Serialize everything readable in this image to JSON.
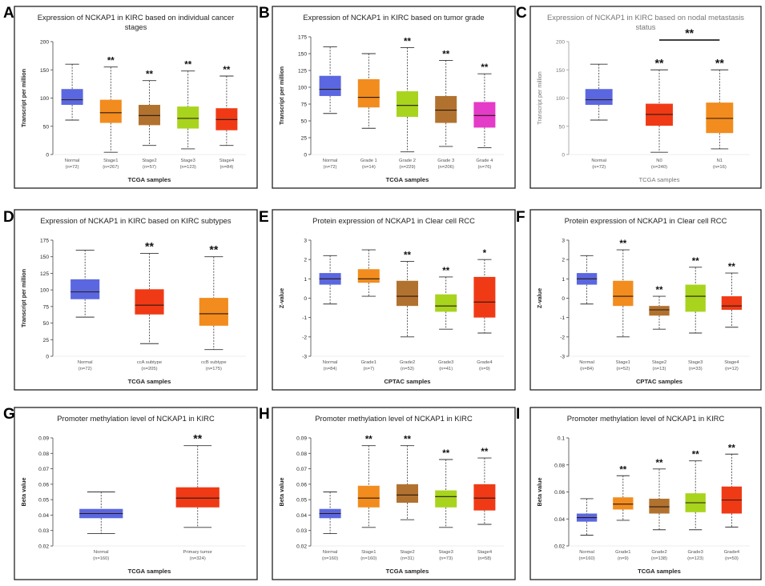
{
  "figure_caption": "",
  "colors": {
    "blue": "#5B67E0",
    "orange": "#F28C1E",
    "brown": "#B2722F",
    "lime": "#A8D41E",
    "magenta": "#E43BC8",
    "red": "#F03A16",
    "frame": "#222222"
  },
  "chart_data": [
    {
      "letter": "A",
      "type": "boxplot",
      "title": [
        "Expression of NCKAP1 in KIRC based on individual cancer",
        "stages"
      ],
      "xlabel": "TCGA samples",
      "ylabel": "Transcript per million",
      "ylim": [
        0,
        200
      ],
      "yticks": [
        0,
        50,
        100,
        150,
        200
      ],
      "categories": [
        "Normal",
        "Stage1",
        "Stage2",
        "Stage3",
        "Stage4"
      ],
      "n_labels": [
        "(n=72)",
        "(n=267)",
        "(n=57)",
        "(n=123)",
        "(n=84)"
      ],
      "colors": [
        "blue",
        "orange",
        "brown",
        "lime",
        "red"
      ],
      "boxes": [
        {
          "min": 61,
          "q1": 88,
          "median": 97,
          "q3": 116,
          "max": 160
        },
        {
          "min": 4,
          "q1": 56,
          "median": 74,
          "q3": 97,
          "max": 155
        },
        {
          "min": 16,
          "q1": 52,
          "median": 69,
          "q3": 88,
          "max": 131
        },
        {
          "min": 10,
          "q1": 46,
          "median": 64,
          "q3": 85,
          "max": 148
        },
        {
          "min": 16,
          "q1": 43,
          "median": 62,
          "q3": 82,
          "max": 139
        }
      ],
      "significance": [
        "",
        "**",
        "**",
        "**",
        "**"
      ]
    },
    {
      "letter": "B",
      "type": "boxplot",
      "title": [
        "Expression of NCKAP1 in KIRC based on tumor grade"
      ],
      "xlabel": "TCGA samples",
      "ylabel": "Transcript per million",
      "ylim": [
        0,
        175
      ],
      "yticks": [
        0,
        25,
        50,
        75,
        100,
        125,
        150,
        175
      ],
      "categories": [
        "Normal",
        "Grade 1",
        "Grade 2",
        "Grade 3",
        "Grade 4"
      ],
      "n_labels": [
        "(n=72)",
        "(n=14)",
        "(n=229)",
        "(n=206)",
        "(n=76)"
      ],
      "colors": [
        "blue",
        "orange",
        "lime",
        "brown",
        "magenta"
      ],
      "boxes": [
        {
          "min": 61,
          "q1": 87,
          "median": 97,
          "q3": 117,
          "max": 160
        },
        {
          "min": 39,
          "q1": 70,
          "median": 85,
          "q3": 112,
          "max": 150
        },
        {
          "min": 4,
          "q1": 56,
          "median": 73,
          "q3": 94,
          "max": 159
        },
        {
          "min": 12,
          "q1": 47,
          "median": 66,
          "q3": 87,
          "max": 140
        },
        {
          "min": 10,
          "q1": 40,
          "median": 58,
          "q3": 78,
          "max": 120
        }
      ],
      "significance": [
        "",
        "",
        "**",
        "**",
        "**"
      ]
    },
    {
      "letter": "C",
      "type": "boxplot",
      "title": [
        "Expression of NCKAP1 in KIRC based on nodal metastasis",
        "status"
      ],
      "xlabel": "TCGA samples",
      "ylabel": "Transcript per million",
      "ylim": [
        0,
        200
      ],
      "yticks": [
        0,
        50,
        100,
        150,
        200
      ],
      "categories": [
        "Normal",
        "N0",
        "N1"
      ],
      "n_labels": [
        "(n=72)",
        "(n=240)",
        "(n=16)"
      ],
      "colors": [
        "blue",
        "red",
        "orange"
      ],
      "boxes": [
        {
          "min": 61,
          "q1": 88,
          "median": 97,
          "q3": 116,
          "max": 160
        },
        {
          "min": 4,
          "q1": 51,
          "median": 71,
          "q3": 90,
          "max": 150
        },
        {
          "min": 10,
          "q1": 38,
          "median": 64,
          "q3": 92,
          "max": 150
        }
      ],
      "significance": [
        "",
        "**",
        "**"
      ],
      "bracket": {
        "from": 1,
        "to": 2,
        "label": "**"
      },
      "faint": true
    },
    {
      "letter": "D",
      "type": "boxplot",
      "title": [
        "Expression of NCKAP1 in KIRC based on KIRC subtypes"
      ],
      "xlabel": "TCGA samples",
      "ylabel": "Transcript per million",
      "ylim": [
        0,
        175
      ],
      "yticks": [
        0,
        25,
        50,
        75,
        100,
        125,
        150,
        175
      ],
      "categories": [
        "Normal",
        "ccA subtype",
        "ccB subtype"
      ],
      "n_labels": [
        "(n=72)",
        "(n=205)",
        "(n=175)"
      ],
      "colors": [
        "blue",
        "red",
        "orange"
      ],
      "boxes": [
        {
          "min": 59,
          "q1": 86,
          "median": 97,
          "q3": 116,
          "max": 160
        },
        {
          "min": 19,
          "q1": 63,
          "median": 77,
          "q3": 101,
          "max": 155
        },
        {
          "min": 10,
          "q1": 46,
          "median": 64,
          "q3": 88,
          "max": 150
        }
      ],
      "significance": [
        "",
        "**",
        "**"
      ]
    },
    {
      "letter": "E",
      "type": "boxplot",
      "title": [
        "Protein expression of NCKAP1 in Clear cell RCC"
      ],
      "xlabel": "CPTAC samples",
      "ylabel": "Z-value",
      "ylim": [
        -3,
        3
      ],
      "yticks": [
        -3,
        -2,
        -1,
        0,
        1,
        2,
        3
      ],
      "categories": [
        "Normal",
        "Grade1",
        "Grade2",
        "Grade3",
        "Grade4"
      ],
      "n_labels": [
        "(n=84)",
        "(n=7)",
        "(n=53)",
        "(n=41)",
        "(n=9)"
      ],
      "colors": [
        "blue",
        "orange",
        "brown",
        "lime",
        "red"
      ],
      "boxes": [
        {
          "min": -0.3,
          "q1": 0.7,
          "median": 1.0,
          "q3": 1.3,
          "max": 2.2
        },
        {
          "min": 0.1,
          "q1": 0.8,
          "median": 1.0,
          "q3": 1.5,
          "max": 2.5
        },
        {
          "min": -2.0,
          "q1": -0.4,
          "median": 0.1,
          "q3": 0.9,
          "max": 1.9
        },
        {
          "min": -1.6,
          "q1": -0.7,
          "median": -0.4,
          "q3": 0.2,
          "max": 1.1
        },
        {
          "min": -1.8,
          "q1": -1.0,
          "median": -0.2,
          "q3": 1.1,
          "max": 2.0
        }
      ],
      "significance": [
        "",
        "",
        "**",
        "**",
        "*"
      ]
    },
    {
      "letter": "F",
      "type": "boxplot",
      "title": [
        "Protein expression of NCKAP1 in Clear cell RCC"
      ],
      "xlabel": "CPTAC samples",
      "ylabel": "Z-value",
      "ylim": [
        -3,
        3
      ],
      "yticks": [
        -3,
        -2,
        -1,
        0,
        1,
        2,
        3
      ],
      "categories": [
        "Normal",
        "Stage1",
        "Stage2",
        "Stage3",
        "Stage4"
      ],
      "n_labels": [
        "(n=84)",
        "(n=52)",
        "(n=13)",
        "(n=33)",
        "(n=12)"
      ],
      "colors": [
        "blue",
        "orange",
        "brown",
        "lime",
        "red"
      ],
      "boxes": [
        {
          "min": -0.3,
          "q1": 0.7,
          "median": 1.0,
          "q3": 1.3,
          "max": 2.2
        },
        {
          "min": -2.0,
          "q1": -0.4,
          "median": 0.1,
          "q3": 0.9,
          "max": 2.5
        },
        {
          "min": -1.6,
          "q1": -0.9,
          "median": -0.6,
          "q3": -0.4,
          "max": 0.1
        },
        {
          "min": -1.8,
          "q1": -0.7,
          "median": 0.1,
          "q3": 0.7,
          "max": 1.6
        },
        {
          "min": -1.5,
          "q1": -0.6,
          "median": -0.4,
          "q3": 0.1,
          "max": 1.3
        }
      ],
      "significance": [
        "",
        "**",
        "**",
        "**",
        "**"
      ]
    },
    {
      "letter": "G",
      "type": "boxplot",
      "title": [
        "Promoter methylation level of NCKAP1 in KIRC"
      ],
      "xlabel": "TCGA samples",
      "ylabel": "Beta value",
      "ylim": [
        0.02,
        0.09
      ],
      "yticks": [
        0.02,
        0.03,
        0.04,
        0.05,
        0.06,
        0.07,
        0.08,
        0.09
      ],
      "categories": [
        "Normal",
        "Primary tumor"
      ],
      "n_labels": [
        "(n=160)",
        "(n=324)"
      ],
      "colors": [
        "blue",
        "red"
      ],
      "boxes": [
        {
          "min": 0.028,
          "q1": 0.038,
          "median": 0.041,
          "q3": 0.044,
          "max": 0.055
        },
        {
          "min": 0.032,
          "q1": 0.045,
          "median": 0.051,
          "q3": 0.058,
          "max": 0.085
        }
      ],
      "significance": [
        "",
        "**"
      ]
    },
    {
      "letter": "H",
      "type": "boxplot",
      "title": [
        "Promoter methylation level of NCKAP1 in KIRC"
      ],
      "xlabel": "TCGA samples",
      "ylabel": "Beta value",
      "ylim": [
        0.02,
        0.09
      ],
      "yticks": [
        0.02,
        0.03,
        0.04,
        0.05,
        0.06,
        0.07,
        0.08,
        0.09
      ],
      "categories": [
        "Normal",
        "Stage1",
        "Stage2",
        "Stage3",
        "Stage4"
      ],
      "n_labels": [
        "(n=160)",
        "(n=160)",
        "(n=31)",
        "(n=73)",
        "(n=58)"
      ],
      "colors": [
        "blue",
        "orange",
        "brown",
        "lime",
        "red"
      ],
      "boxes": [
        {
          "min": 0.028,
          "q1": 0.038,
          "median": 0.041,
          "q3": 0.044,
          "max": 0.055
        },
        {
          "min": 0.032,
          "q1": 0.045,
          "median": 0.051,
          "q3": 0.059,
          "max": 0.085
        },
        {
          "min": 0.037,
          "q1": 0.048,
          "median": 0.053,
          "q3": 0.06,
          "max": 0.085
        },
        {
          "min": 0.032,
          "q1": 0.045,
          "median": 0.052,
          "q3": 0.056,
          "max": 0.076
        },
        {
          "min": 0.034,
          "q1": 0.043,
          "median": 0.051,
          "q3": 0.06,
          "max": 0.077
        }
      ],
      "significance": [
        "",
        "**",
        "**",
        "**",
        "**"
      ]
    },
    {
      "letter": "I",
      "type": "boxplot",
      "title": [
        "Promoter methylation level of NCKAP1 in KIRC"
      ],
      "xlabel": "TCGA samples",
      "ylabel": "Beta value",
      "ylim": [
        0.02,
        0.1
      ],
      "yticks": [
        0.02,
        0.04,
        0.06,
        0.08,
        0.1
      ],
      "categories": [
        "Normal",
        "Grade1",
        "Grade2",
        "Grade3",
        "Grade4"
      ],
      "n_labels": [
        "(n=160)",
        "(n=9)",
        "(n=138)",
        "(n=123)",
        "(n=50)"
      ],
      "colors": [
        "blue",
        "orange",
        "brown",
        "lime",
        "red"
      ],
      "boxes": [
        {
          "min": 0.028,
          "q1": 0.038,
          "median": 0.041,
          "q3": 0.044,
          "max": 0.055
        },
        {
          "min": 0.039,
          "q1": 0.047,
          "median": 0.051,
          "q3": 0.056,
          "max": 0.072
        },
        {
          "min": 0.032,
          "q1": 0.044,
          "median": 0.049,
          "q3": 0.055,
          "max": 0.077
        },
        {
          "min": 0.032,
          "q1": 0.045,
          "median": 0.052,
          "q3": 0.059,
          "max": 0.083
        },
        {
          "min": 0.034,
          "q1": 0.044,
          "median": 0.054,
          "q3": 0.064,
          "max": 0.088
        }
      ],
      "significance": [
        "",
        "**",
        "**",
        "**",
        "**"
      ]
    }
  ]
}
